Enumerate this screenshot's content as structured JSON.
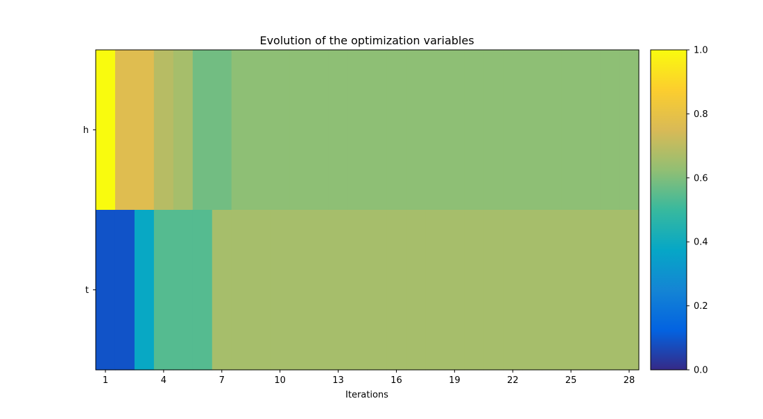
{
  "chart_data": {
    "type": "heatmap",
    "title": "Evolution of the optimization variables",
    "xlabel": "Iterations",
    "ylabel": "",
    "rows": [
      "h",
      "t"
    ],
    "x": [
      1,
      2,
      3,
      4,
      5,
      6,
      7,
      8,
      9,
      10,
      11,
      12,
      13,
      14,
      15,
      16,
      17,
      18,
      19,
      20,
      21,
      22,
      23,
      24,
      25,
      26,
      27,
      28
    ],
    "x_ticks": [
      1,
      4,
      7,
      10,
      13,
      16,
      19,
      22,
      25,
      28
    ],
    "values": [
      [
        1.0,
        0.77,
        0.77,
        0.69,
        0.66,
        0.58,
        0.58,
        0.62,
        0.62,
        0.62,
        0.62,
        0.62,
        0.62,
        0.62,
        0.62,
        0.62,
        0.62,
        0.62,
        0.62,
        0.62,
        0.62,
        0.62,
        0.62,
        0.62,
        0.62,
        0.62,
        0.62,
        0.62
      ],
      [
        0.09,
        0.09,
        0.38,
        0.54,
        0.54,
        0.54,
        0.66,
        0.66,
        0.66,
        0.66,
        0.66,
        0.66,
        0.66,
        0.66,
        0.66,
        0.66,
        0.66,
        0.66,
        0.66,
        0.66,
        0.66,
        0.66,
        0.66,
        0.66,
        0.66,
        0.66,
        0.66,
        0.66
      ]
    ],
    "colorbar": {
      "range": [
        0,
        1
      ],
      "ticks": [
        "0.0",
        "0.2",
        "0.4",
        "0.6",
        "0.8",
        "1.0"
      ],
      "colormap": "parula",
      "stops": [
        "#352a87",
        "#0363e1",
        "#1485d4",
        "#06a7c6",
        "#38b99e",
        "#92bf73",
        "#d9ba56",
        "#fcce2e",
        "#f9fb0e"
      ]
    }
  }
}
